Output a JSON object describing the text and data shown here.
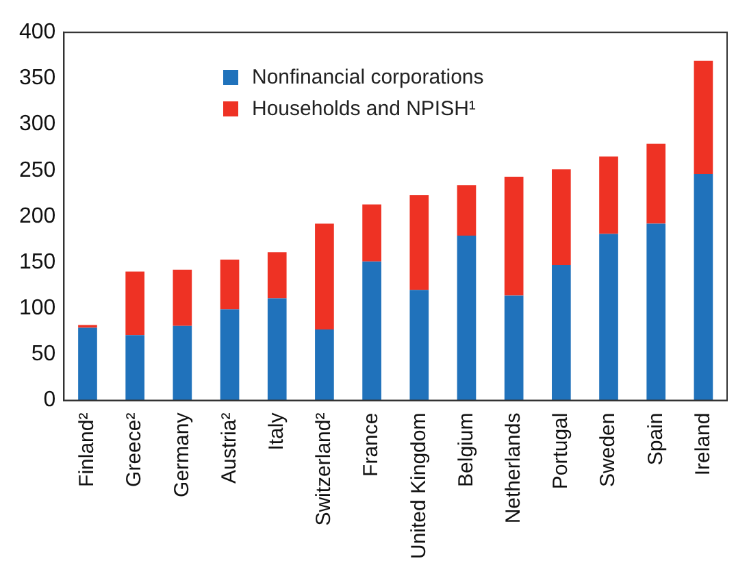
{
  "chart_data": {
    "type": "bar",
    "stacked": true,
    "categories": [
      "Finland²",
      "Greece²",
      "Germany",
      "Austria²",
      "Italy",
      "Switzerland²",
      "France",
      "United Kingdom",
      "Belgium",
      "Netherlands",
      "Portugal",
      "Sweden",
      "Spain",
      "Ireland"
    ],
    "series": [
      {
        "name": "Nonfinancial corporations",
        "color": "#2072bb",
        "values": [
          79,
          71,
          81,
          99,
          111,
          77,
          151,
          120,
          179,
          114,
          147,
          181,
          192,
          246
        ]
      },
      {
        "name": "Households and NPISH¹",
        "color": "#ee3224",
        "values": [
          3,
          69,
          61,
          54,
          50,
          115,
          62,
          103,
          55,
          129,
          104,
          84,
          87,
          123
        ]
      }
    ],
    "ylim": [
      0,
      400
    ],
    "yticks": [
      0,
      50,
      100,
      150,
      200,
      250,
      300,
      350,
      400
    ],
    "grid": false,
    "legend": "top left"
  }
}
